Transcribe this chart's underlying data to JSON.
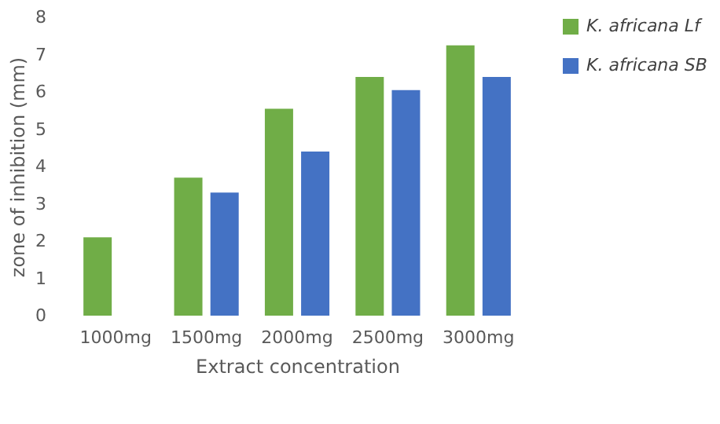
{
  "chart_data": {
    "type": "bar",
    "xlabel": "Extract concentration",
    "ylabel": "zone of inhibition (mm)",
    "categories": [
      "1000mg",
      "1500mg",
      "2000mg",
      "2500mg",
      "3000mg"
    ],
    "series": [
      {
        "name": "K. africana Lf",
        "color": "#70ad47",
        "values": [
          2.1,
          3.7,
          5.55,
          6.4,
          7.25
        ]
      },
      {
        "name": "K. africana SB",
        "color": "#4472c4",
        "values": [
          null,
          3.3,
          4.4,
          6.05,
          6.4
        ]
      }
    ],
    "ylim": [
      0,
      8
    ],
    "yticks": [
      0,
      1,
      2,
      3,
      4,
      5,
      6,
      7,
      8
    ],
    "grid": false,
    "legend": "right"
  }
}
